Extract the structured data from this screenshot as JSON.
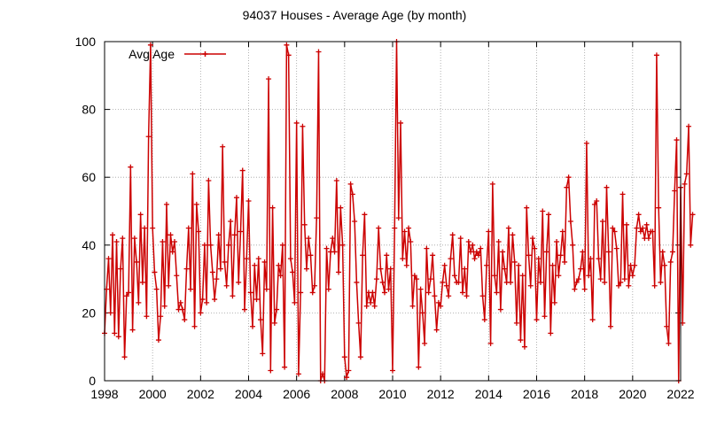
{
  "chart_data": {
    "type": "line",
    "title": "94037 Houses - Average Age (by month)",
    "xlabel": "",
    "ylabel": "",
    "xlim": [
      1998,
      2022
    ],
    "ylim": [
      0,
      100
    ],
    "x_ticks": [
      "1998",
      "2000",
      "2002",
      "2004",
      "2006",
      "2008",
      "2010",
      "2012",
      "2014",
      "2016",
      "2018",
      "2020",
      "2022"
    ],
    "y_ticks": [
      "0",
      "20",
      "40",
      "60",
      "80",
      "100"
    ],
    "grid": true,
    "legend_position": "top-left",
    "series": [
      {
        "name": "Avg Age",
        "color": "#cc0000",
        "marker": "plus",
        "x_start": 1998.0,
        "x_step_months": 1,
        "values": [
          14,
          27,
          36,
          20,
          43,
          14,
          41,
          13,
          33,
          42,
          7,
          25,
          26,
          63,
          15,
          42,
          35,
          23,
          49,
          29,
          45,
          19,
          72,
          99,
          45,
          32,
          27,
          12,
          19,
          41,
          22,
          52,
          28,
          43,
          38,
          41,
          31,
          21,
          23,
          21,
          18,
          33,
          45,
          27,
          61,
          16,
          52,
          44,
          20,
          24,
          40,
          23,
          59,
          40,
          32,
          24,
          30,
          43,
          33,
          69,
          35,
          28,
          40,
          47,
          25,
          43,
          54,
          29,
          44,
          62,
          21,
          36,
          53,
          26,
          16,
          34,
          24,
          36,
          18,
          8,
          35,
          27,
          89,
          3,
          51,
          17,
          21,
          34,
          31,
          40,
          4,
          99,
          96,
          36,
          32,
          23,
          76,
          2,
          26,
          75,
          46,
          33,
          42,
          37,
          26,
          28,
          48,
          97,
          0,
          2,
          0,
          39,
          27,
          38,
          42,
          38,
          59,
          32,
          51,
          40,
          7,
          1,
          3,
          58,
          55,
          47,
          29,
          17,
          7,
          37,
          49,
          22,
          26,
          23,
          26,
          22,
          30,
          45,
          33,
          29,
          26,
          37,
          27,
          33,
          3,
          45,
          100,
          48,
          76,
          36,
          44,
          34,
          45,
          41,
          22,
          31,
          30,
          4,
          27,
          20,
          11,
          39,
          26,
          30,
          37,
          25,
          15,
          23,
          22,
          29,
          34,
          28,
          25,
          36,
          43,
          31,
          29,
          29,
          42,
          26,
          33,
          25,
          41,
          38,
          40,
          36,
          38,
          37,
          39,
          25,
          18,
          34,
          44,
          11,
          58,
          31,
          26,
          41,
          21,
          38,
          33,
          29,
          45,
          29,
          43,
          35,
          17,
          34,
          12,
          31,
          10,
          51,
          37,
          28,
          42,
          39,
          18,
          36,
          29,
          50,
          19,
          38,
          49,
          14,
          34,
          23,
          41,
          31,
          37,
          44,
          35,
          57,
          60,
          47,
          40,
          27,
          29,
          30,
          33,
          38,
          27,
          70,
          31,
          36,
          18,
          52,
          53,
          36,
          30,
          47,
          29,
          57,
          38,
          16,
          45,
          44,
          39,
          28,
          29,
          55,
          30,
          46,
          28,
          34,
          31,
          34,
          45,
          49,
          44,
          45,
          42,
          46,
          42,
          44,
          44,
          28,
          96,
          51,
          29,
          38,
          34,
          16,
          11,
          35,
          38,
          56,
          71,
          0,
          57,
          17,
          58,
          61,
          75,
          40,
          49
        ]
      }
    ]
  }
}
